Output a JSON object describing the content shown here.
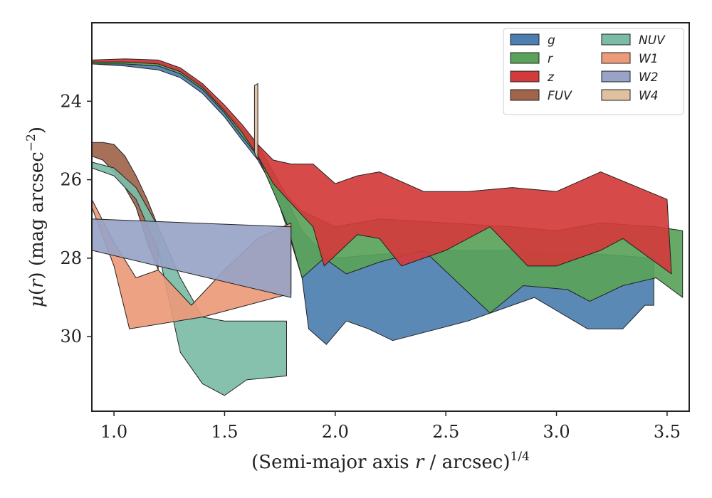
{
  "chart_data": {
    "type": "area",
    "xlabel": "(Semi-major axis r / arcsec)^1/4",
    "xlabel_parts": {
      "pre": "(Semi-major axis ",
      "var": "r",
      "mid": " / arcsec)",
      "sup": "1/4"
    },
    "ylabel": "μ(r) (mag arcsec⁻²)",
    "ylabel_parts": {
      "mu": "μ",
      "open": "(",
      "var": "r",
      "close": ") (mag arcsec",
      "sup": "−2",
      "end": ")"
    },
    "xlim": [
      0.9,
      3.6
    ],
    "ylim": [
      31.9,
      22.0
    ],
    "y_inverted": true,
    "x_ticks": [
      1.0,
      1.5,
      2.0,
      2.5,
      3.0,
      3.5
    ],
    "x_tick_labels": [
      "1.0",
      "1.5",
      "2.0",
      "2.5",
      "3.0",
      "3.5"
    ],
    "y_ticks": [
      24,
      26,
      28,
      30
    ],
    "y_tick_labels": [
      "24",
      "26",
      "28",
      "30"
    ],
    "grid": false,
    "legend": {
      "placement": "top-right",
      "columns": 2
    },
    "series": [
      {
        "name": "g",
        "color": "#4c7fb0",
        "upper": [
          [
            0.9,
            23.0
          ],
          [
            1.05,
            23.05
          ],
          [
            1.2,
            23.1
          ],
          [
            1.3,
            23.3
          ],
          [
            1.4,
            23.7
          ],
          [
            1.5,
            24.2
          ],
          [
            1.58,
            24.8
          ],
          [
            1.65,
            25.2
          ],
          [
            1.72,
            25.9
          ],
          [
            1.78,
            26.5
          ],
          [
            1.85,
            27.3
          ],
          [
            1.95,
            27.9
          ],
          [
            2.0,
            28.0
          ],
          [
            2.2,
            27.9
          ],
          [
            2.5,
            27.8
          ],
          [
            2.8,
            27.8
          ],
          [
            3.0,
            27.9
          ],
          [
            3.2,
            27.9
          ],
          [
            3.44,
            28.0
          ]
        ],
        "lower": [
          [
            0.9,
            23.05
          ],
          [
            1.05,
            23.1
          ],
          [
            1.2,
            23.2
          ],
          [
            1.3,
            23.4
          ],
          [
            1.4,
            23.8
          ],
          [
            1.5,
            24.4
          ],
          [
            1.58,
            25.0
          ],
          [
            1.65,
            25.5
          ],
          [
            1.72,
            26.2
          ],
          [
            1.78,
            27.2
          ],
          [
            1.85,
            28.5
          ],
          [
            1.88,
            29.8
          ],
          [
            1.96,
            30.2
          ],
          [
            2.05,
            29.6
          ],
          [
            2.15,
            29.8
          ],
          [
            2.26,
            30.1
          ],
          [
            2.6,
            29.6
          ],
          [
            2.9,
            29.0
          ],
          [
            3.14,
            29.8
          ],
          [
            3.3,
            29.8
          ],
          [
            3.4,
            29.2
          ],
          [
            3.44,
            29.2
          ]
        ]
      },
      {
        "name": "r",
        "color": "#5aa25a",
        "upper": [
          [
            0.9,
            23.0
          ],
          [
            1.05,
            22.98
          ],
          [
            1.2,
            23.0
          ],
          [
            1.3,
            23.2
          ],
          [
            1.4,
            23.6
          ],
          [
            1.5,
            24.2
          ],
          [
            1.58,
            24.7
          ],
          [
            1.65,
            25.1
          ],
          [
            1.72,
            25.8
          ],
          [
            1.78,
            26.4
          ],
          [
            1.85,
            26.8
          ],
          [
            2.0,
            27.2
          ],
          [
            2.2,
            27.0
          ],
          [
            2.5,
            27.1
          ],
          [
            2.8,
            27.2
          ],
          [
            3.0,
            27.3
          ],
          [
            3.2,
            27.1
          ],
          [
            3.45,
            27.2
          ],
          [
            3.57,
            27.3
          ]
        ],
        "lower": [
          [
            0.9,
            23.05
          ],
          [
            1.05,
            23.05
          ],
          [
            1.2,
            23.1
          ],
          [
            1.3,
            23.3
          ],
          [
            1.4,
            23.7
          ],
          [
            1.5,
            24.3
          ],
          [
            1.58,
            24.9
          ],
          [
            1.65,
            25.4
          ],
          [
            1.72,
            26.3
          ],
          [
            1.78,
            27.1
          ],
          [
            1.85,
            28.5
          ],
          [
            1.95,
            28.0
          ],
          [
            2.05,
            28.4
          ],
          [
            2.2,
            28.1
          ],
          [
            2.4,
            27.8
          ],
          [
            2.7,
            29.4
          ],
          [
            2.85,
            28.7
          ],
          [
            3.05,
            28.8
          ],
          [
            3.15,
            29.1
          ],
          [
            3.3,
            28.7
          ],
          [
            3.45,
            28.5
          ],
          [
            3.57,
            29.0
          ]
        ]
      },
      {
        "name": "z",
        "color": "#d23b3b",
        "upper": [
          [
            0.9,
            22.95
          ],
          [
            1.05,
            22.92
          ],
          [
            1.2,
            22.95
          ],
          [
            1.3,
            23.15
          ],
          [
            1.4,
            23.55
          ],
          [
            1.5,
            24.1
          ],
          [
            1.58,
            24.6
          ],
          [
            1.65,
            25.1
          ],
          [
            1.72,
            25.5
          ],
          [
            1.8,
            25.6
          ],
          [
            1.9,
            25.6
          ],
          [
            2.0,
            26.1
          ],
          [
            2.1,
            25.9
          ],
          [
            2.2,
            25.8
          ],
          [
            2.4,
            26.3
          ],
          [
            2.6,
            26.3
          ],
          [
            2.8,
            26.2
          ],
          [
            3.0,
            26.3
          ],
          [
            3.2,
            25.8
          ],
          [
            3.5,
            26.5
          ]
        ],
        "lower": [
          [
            0.9,
            23.0
          ],
          [
            1.05,
            23.0
          ],
          [
            1.2,
            23.05
          ],
          [
            1.3,
            23.25
          ],
          [
            1.4,
            23.65
          ],
          [
            1.5,
            24.25
          ],
          [
            1.58,
            24.8
          ],
          [
            1.65,
            25.4
          ],
          [
            1.72,
            26.1
          ],
          [
            1.8,
            26.6
          ],
          [
            1.9,
            27.2
          ],
          [
            1.95,
            28.2
          ],
          [
            2.1,
            27.4
          ],
          [
            2.2,
            27.5
          ],
          [
            2.3,
            28.2
          ],
          [
            2.5,
            27.8
          ],
          [
            2.7,
            27.2
          ],
          [
            2.87,
            28.2
          ],
          [
            3.0,
            28.2
          ],
          [
            3.2,
            27.8
          ],
          [
            3.3,
            27.5
          ],
          [
            3.52,
            28.4
          ]
        ]
      },
      {
        "name": "FUV",
        "color": "#a0644b",
        "upper": [
          [
            0.9,
            25.05
          ],
          [
            0.95,
            25.05
          ],
          [
            1.0,
            25.1
          ],
          [
            1.05,
            25.4
          ],
          [
            1.1,
            25.9
          ],
          [
            1.15,
            26.5
          ],
          [
            1.2,
            27.2
          ]
        ],
        "lower": [
          [
            0.9,
            25.4
          ],
          [
            0.95,
            25.5
          ],
          [
            1.0,
            25.8
          ],
          [
            1.05,
            26.2
          ],
          [
            1.1,
            26.7
          ],
          [
            1.15,
            27.6
          ],
          [
            1.2,
            28.3
          ]
        ]
      },
      {
        "name": "NUV",
        "color": "#7bbca6",
        "upper": [
          [
            0.9,
            25.55
          ],
          [
            1.0,
            25.7
          ],
          [
            1.1,
            26.2
          ],
          [
            1.2,
            27.2
          ],
          [
            1.3,
            28.5
          ],
          [
            1.4,
            29.5
          ],
          [
            1.5,
            29.6
          ],
          [
            1.6,
            29.6
          ],
          [
            1.78,
            29.6
          ]
        ],
        "lower": [
          [
            0.9,
            25.7
          ],
          [
            1.0,
            25.9
          ],
          [
            1.1,
            26.5
          ],
          [
            1.2,
            27.8
          ],
          [
            1.3,
            30.4
          ],
          [
            1.4,
            31.2
          ],
          [
            1.5,
            31.5
          ],
          [
            1.6,
            31.1
          ],
          [
            1.78,
            31.0
          ]
        ]
      },
      {
        "name": "W1",
        "color": "#ec9a7a",
        "upper": [
          [
            0.9,
            26.5
          ],
          [
            1.0,
            27.6
          ],
          [
            1.1,
            28.5
          ],
          [
            1.2,
            28.3
          ],
          [
            1.35,
            29.2
          ],
          [
            1.5,
            28.3
          ],
          [
            1.65,
            27.5
          ],
          [
            1.8,
            27.1
          ]
        ],
        "lower": [
          [
            0.9,
            26.7
          ],
          [
            1.0,
            28.2
          ],
          [
            1.07,
            29.8
          ],
          [
            1.4,
            29.5
          ],
          [
            1.6,
            29.2
          ],
          [
            1.8,
            28.9
          ]
        ]
      },
      {
        "name": "W2",
        "color": "#98a3c6",
        "upper": [
          [
            0.9,
            27.0
          ],
          [
            1.8,
            27.2
          ]
        ],
        "lower": [
          [
            0.9,
            27.8
          ],
          [
            1.8,
            29.0
          ]
        ]
      },
      {
        "name": "W4",
        "color": "#dfc09f",
        "upper": [
          [
            1.635,
            23.6
          ],
          [
            1.65,
            23.55
          ]
        ],
        "lower": [
          [
            1.635,
            25.3
          ],
          [
            1.65,
            25.5
          ]
        ]
      }
    ]
  }
}
